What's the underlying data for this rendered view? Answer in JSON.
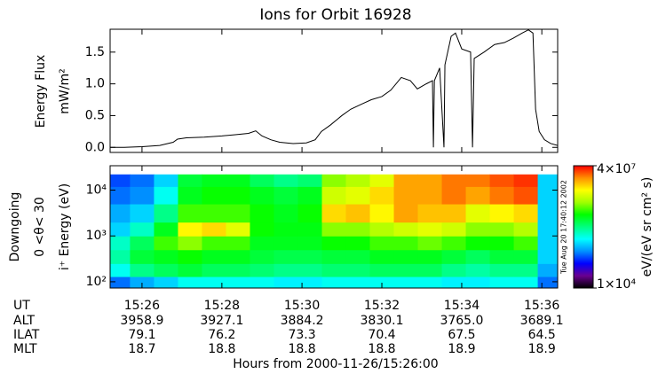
{
  "chart_data": [
    {
      "type": "line",
      "title": "Ions for Orbit 16928",
      "y_label": [
        "Energy Flux",
        "mW/m²"
      ],
      "color": "#000000",
      "x": [
        -0.0133,
        -0.0074,
        0,
        0.0074,
        0.013,
        0.0148,
        0.0185,
        0.0259,
        0.0333,
        0.0389,
        0.0444,
        0.0474,
        0.05,
        0.0537,
        0.0574,
        0.063,
        0.0685,
        0.0722,
        0.0748,
        0.0785,
        0.0833,
        0.087,
        0.0915,
        0.0956,
        0.1,
        0.1037,
        0.1081,
        0.1119,
        0.1148,
        0.1185,
        0.1211,
        0.1215,
        0.1219,
        0.1241,
        0.1259,
        0.1263,
        0.1289,
        0.1307,
        0.1333,
        0.137,
        0.1378,
        0.1385,
        0.1426,
        0.147,
        0.1511,
        0.1548,
        0.1585,
        0.1611,
        0.163,
        0.1641,
        0.1656,
        0.1678,
        0.1704,
        0.1733
      ],
      "values": [
        0.0,
        0.0,
        0.01,
        0.03,
        0.08,
        0.13,
        0.15,
        0.16,
        0.18,
        0.2,
        0.22,
        0.26,
        0.18,
        0.12,
        0.08,
        0.06,
        0.07,
        0.12,
        0.25,
        0.35,
        0.5,
        0.6,
        0.68,
        0.75,
        0.8,
        0.9,
        1.1,
        1.05,
        0.92,
        1.0,
        1.05,
        0.0,
        1.05,
        1.25,
        0.0,
        1.3,
        1.75,
        1.8,
        1.55,
        1.5,
        0.0,
        1.4,
        1.5,
        1.62,
        1.65,
        1.72,
        1.8,
        1.85,
        1.8,
        0.6,
        0.25,
        0.12,
        0.06,
        0.03
      ],
      "xlim": [
        -0.0133,
        0.1733
      ],
      "xticks": [
        0,
        0.0333,
        0.0667,
        0.1,
        0.1333,
        0.1667
      ],
      "ylim": [
        -0.08,
        1.86
      ],
      "yticks": [
        {
          "value": 0,
          "label": "0.0"
        },
        0.5,
        {
          "value": 1,
          "label": "1.0"
        },
        1.5
      ]
    },
    {
      "type": "heatmap",
      "y_label": [
        "Downgoing",
        "0 <θ< 30",
        "i⁺ Energy (eV)"
      ],
      "x_label": "Hours from 2000-11-26/15:26:00",
      "timestamp": "Tue Aug 20 17:40:12 2002",
      "log_y": true,
      "xlim": [
        -0.0133,
        0.1733
      ],
      "xticks": [
        {
          "value": 0,
          "label": "15:26"
        },
        {
          "value": 0.0333,
          "label": "15:28"
        },
        {
          "value": 0.0667,
          "label": "15:30"
        },
        {
          "value": 0.1,
          "label": "15:32"
        },
        {
          "value": 0.1333,
          "label": "15:34"
        },
        {
          "value": 0.1667,
          "label": "15:36"
        }
      ],
      "ylim": [
        73,
        34000
      ],
      "yticks": [
        {
          "value": 100,
          "label": "10²"
        },
        {
          "value": 1000,
          "label": "10³"
        },
        {
          "value": 10000,
          "label": "10⁴"
        }
      ],
      "x_bins": [
        -0.0133,
        -0.005,
        0.005,
        0.015,
        0.025,
        0.035,
        0.045,
        0.055,
        0.065,
        0.075,
        0.085,
        0.095,
        0.105,
        0.115,
        0.125,
        0.135,
        0.145,
        0.155,
        0.165,
        0.1733
      ],
      "y_bins": [
        73,
        130,
        250,
        500,
        1000,
        2000,
        5000,
        12000,
        22000
      ],
      "z": [
        [
          100000.0,
          300000.0,
          500000.0,
          400000.0,
          200000.0,
          150000.0,
          100000.0,
          80000.0
        ],
        [
          150000.0,
          600000.0,
          1000000.0,
          800000.0,
          400000.0,
          200000.0,
          120000.0,
          100000.0
        ],
        [
          200000.0,
          800000.0,
          1200000.0,
          2000000.0,
          1200000.0,
          600000.0,
          300000.0,
          200000.0
        ],
        [
          300000.0,
          1000000.0,
          1500000.0,
          3000000.0,
          8000000.0,
          2000000.0,
          1200000.0,
          1000000.0
        ],
        [
          300000.0,
          800000.0,
          1200000.0,
          2000000.0,
          10000000.0,
          2000000.0,
          1500000.0,
          1200000.0
        ],
        [
          300000.0,
          800000.0,
          1200000.0,
          2000000.0,
          6000000.0,
          2000000.0,
          1500000.0,
          1200000.0
        ],
        [
          300000.0,
          700000.0,
          1000000.0,
          1200000.0,
          1500000.0,
          1500000.0,
          1200000.0,
          800000.0
        ],
        [
          250000.0,
          600000.0,
          900000.0,
          1200000.0,
          1300000.0,
          1200000.0,
          1000000.0,
          600000.0
        ],
        [
          250000.0,
          600000.0,
          900000.0,
          1200000.0,
          1300000.0,
          1500000.0,
          1200000.0,
          700000.0
        ],
        [
          300000.0,
          700000.0,
          1000000.0,
          1500000.0,
          3000000.0,
          10000000.0,
          5000000.0,
          3000000.0
        ],
        [
          300000.0,
          700000.0,
          1000000.0,
          1500000.0,
          3000000.0,
          12000000.0,
          6000000.0,
          4000000.0
        ],
        [
          300000.0,
          800000.0,
          1200000.0,
          2000000.0,
          4000000.0,
          8000000.0,
          10000000.0,
          6000000.0
        ],
        [
          300000.0,
          800000.0,
          1200000.0,
          2000000.0,
          5000000.0,
          15000000.0,
          15000000.0,
          15000000.0
        ],
        [
          300000.0,
          800000.0,
          1200000.0,
          2500000.0,
          6000000.0,
          12000000.0,
          15000000.0,
          15000000.0
        ],
        [
          250000.0,
          600000.0,
          1000000.0,
          2000000.0,
          5000000.0,
          12000000.0,
          20000000.0,
          20000000.0
        ],
        [
          250000.0,
          500000.0,
          800000.0,
          1500000.0,
          3000000.0,
          6000000.0,
          15000000.0,
          20000000.0
        ],
        [
          300000.0,
          600000.0,
          1000000.0,
          1500000.0,
          3000000.0,
          8000000.0,
          20000000.0,
          25000000.0
        ],
        [
          300000.0,
          600000.0,
          1000000.0,
          2000000.0,
          4000000.0,
          10000000.0,
          25000000.0,
          30000000.0
        ],
        [
          100000.0,
          150000.0,
          200000.0,
          200000.0,
          200000.0,
          200000.0,
          200000.0,
          200000.0
        ]
      ],
      "clim": [
        10000,
        40000000
      ],
      "log_color": true,
      "colormap": [
        "#000000",
        "#6a0090",
        "#0000ff",
        "#0090ff",
        "#00ffff",
        "#00ff80",
        "#00ff00",
        "#a0ff00",
        "#ffff00",
        "#ff9000",
        "#ff0000"
      ],
      "colorbar_label": "eV/(eV sr cm² s)",
      "colorbar_ticks": [
        {
          "value": 10000,
          "label": "1×10⁴"
        },
        {
          "value": 40000000,
          "label": "4×10⁷"
        }
      ]
    }
  ],
  "ephemeris": [
    {
      "name": "UT"
    },
    {
      "name": "ALT",
      "values": [
        "3958.9",
        "3927.1",
        "3884.2",
        "3830.1",
        "3765.0",
        "3689.1"
      ]
    },
    {
      "name": "ILAT",
      "values": [
        "79.1",
        "76.2",
        "73.3",
        "70.4",
        "67.5",
        "64.5"
      ]
    },
    {
      "name": "MLT",
      "values": [
        "18.7",
        "18.8",
        "18.8",
        "18.8",
        "18.9",
        "18.9"
      ]
    }
  ]
}
